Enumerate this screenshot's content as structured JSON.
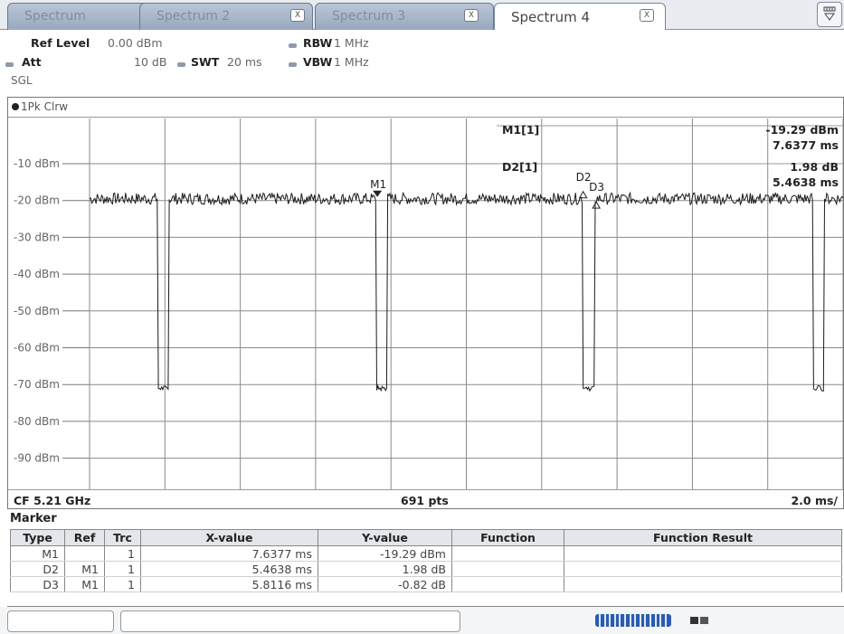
{
  "tabs": [
    {
      "label": "Spectrum",
      "closable": false,
      "active": false
    },
    {
      "label": "Spectrum 2",
      "closable": true,
      "active": false
    },
    {
      "label": "Spectrum 3",
      "closable": true,
      "active": false
    },
    {
      "label": "Spectrum 4",
      "closable": true,
      "active": true
    }
  ],
  "close_glyph": "X",
  "header": {
    "ref_level_label": "Ref Level",
    "ref_level_value": "0.00 dBm",
    "att_label": "Att",
    "att_value": "10 dB",
    "swt_label": "SWT",
    "swt_value": "20 ms",
    "rbw_label": "RBW",
    "rbw_value": "1 MHz",
    "vbw_label": "VBW",
    "vbw_value": "1 MHz",
    "mode": "SGL"
  },
  "trace_label": "1Pk Clrw",
  "marker_readout": {
    "m1_name": "M1[1]",
    "m1_level": "-19.29 dBm",
    "m1_time": "7.6377 ms",
    "d2_name": "D2[1]",
    "d2_level": "1.98 dB",
    "d2_time": "5.4638 ms"
  },
  "footer": {
    "center": "CF 5.21 GHz",
    "points": "691 pts",
    "span": "2.0 ms/"
  },
  "chart_data": {
    "type": "line",
    "y_unit": "dBm",
    "y_ticks": [
      "-10 dBm",
      "-20 dBm",
      "-30 dBm",
      "-40 dBm",
      "-50 dBm",
      "-60 dBm",
      "-70 dBm",
      "-80 dBm",
      "-90 dBm"
    ],
    "y_tick_values": [
      -10,
      -20,
      -30,
      -40,
      -50,
      -60,
      -70,
      -80,
      -90
    ],
    "ylim": [
      -100,
      0
    ],
    "x_range_ms": [
      0,
      20
    ],
    "x_divisions": 10,
    "grid": true,
    "baseline_level_dbm": -19.5,
    "dip_level_dbm": -71,
    "dips_ms": [
      [
        1.8,
        2.1
      ],
      [
        7.6,
        7.9
      ],
      [
        13.1,
        13.4
      ],
      [
        19.2,
        19.5
      ]
    ],
    "markers": [
      {
        "label": "M1",
        "x_ms": 7.6377,
        "y_dbm": -19.29,
        "type": "normal"
      },
      {
        "label": "D2",
        "x_ms": 13.1015,
        "y_dbm": -17.31,
        "type": "delta"
      },
      {
        "label": "D3",
        "x_ms": 13.4493,
        "y_dbm": -20.11,
        "type": "delta"
      }
    ]
  },
  "marker_table": {
    "title": "Marker",
    "columns": [
      "Type",
      "Ref",
      "Trc",
      "X-value",
      "Y-value",
      "Function",
      "Function Result"
    ],
    "rows": [
      {
        "type": "M1",
        "ref": "",
        "trc": "1",
        "x": "7.6377 ms",
        "y": "-19.29 dBm",
        "function": "",
        "result": ""
      },
      {
        "type": "D2",
        "ref": "M1",
        "trc": "1",
        "x": "5.4638 ms",
        "y": "1.98 dB",
        "function": "",
        "result": ""
      },
      {
        "type": "D3",
        "ref": "M1",
        "trc": "1",
        "x": "5.8116 ms",
        "y": "-0.82 dB",
        "function": "",
        "result": ""
      }
    ]
  },
  "colors": {
    "trace": "#1b1b1b",
    "grid": "#8a8a8a",
    "tab_inactive": "#a9b9cc",
    "progress": "#2a5db0"
  }
}
